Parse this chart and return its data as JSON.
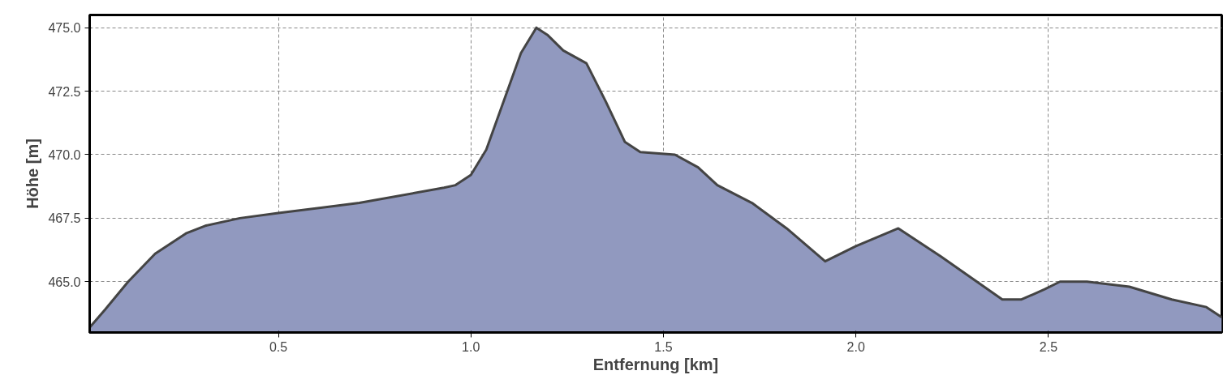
{
  "chart_data": {
    "type": "area",
    "xlabel": "Entfernung [km]",
    "ylabel": "Höhe [m]",
    "x": [
      0.01,
      0.05,
      0.11,
      0.18,
      0.26,
      0.31,
      0.4,
      0.5,
      0.71,
      0.93,
      0.96,
      1.0,
      1.04,
      1.13,
      1.17,
      1.2,
      1.24,
      1.3,
      1.35,
      1.4,
      1.44,
      1.53,
      1.59,
      1.64,
      1.73,
      1.82,
      1.92,
      2.0,
      2.11,
      2.22,
      2.38,
      2.43,
      2.49,
      2.53,
      2.6,
      2.71,
      2.82,
      2.91,
      2.95
    ],
    "series": [
      {
        "color": "#9199bf",
        "values": [
          463.2,
          463.9,
          465.0,
          466.1,
          466.9,
          467.2,
          467.5,
          467.7,
          468.1,
          468.7,
          468.8,
          469.2,
          470.2,
          474.0,
          475.0,
          474.7,
          474.1,
          473.6,
          472.1,
          470.5,
          470.1,
          470.0,
          469.5,
          468.8,
          468.1,
          467.1,
          465.8,
          466.4,
          467.1,
          466.0,
          464.3,
          464.3,
          464.7,
          465.0,
          465.0,
          464.8,
          464.3,
          464.0,
          463.6
        ]
      }
    ],
    "xlim": [
      0.01,
      2.95
    ],
    "ylim": [
      463.0,
      475.5
    ],
    "xticks": [
      0.5,
      {
        "value": 1.0,
        "label": "1.0"
      },
      1.5,
      {
        "value": 2.0,
        "label": "2.0"
      },
      2.5
    ],
    "yticks": [
      {
        "value": 465,
        "label": "465.0"
      },
      467.5,
      {
        "value": 470,
        "label": "470.0"
      },
      472.5,
      {
        "value": 475,
        "label": "475.0"
      }
    ],
    "grid": true,
    "line_style": "solid"
  }
}
